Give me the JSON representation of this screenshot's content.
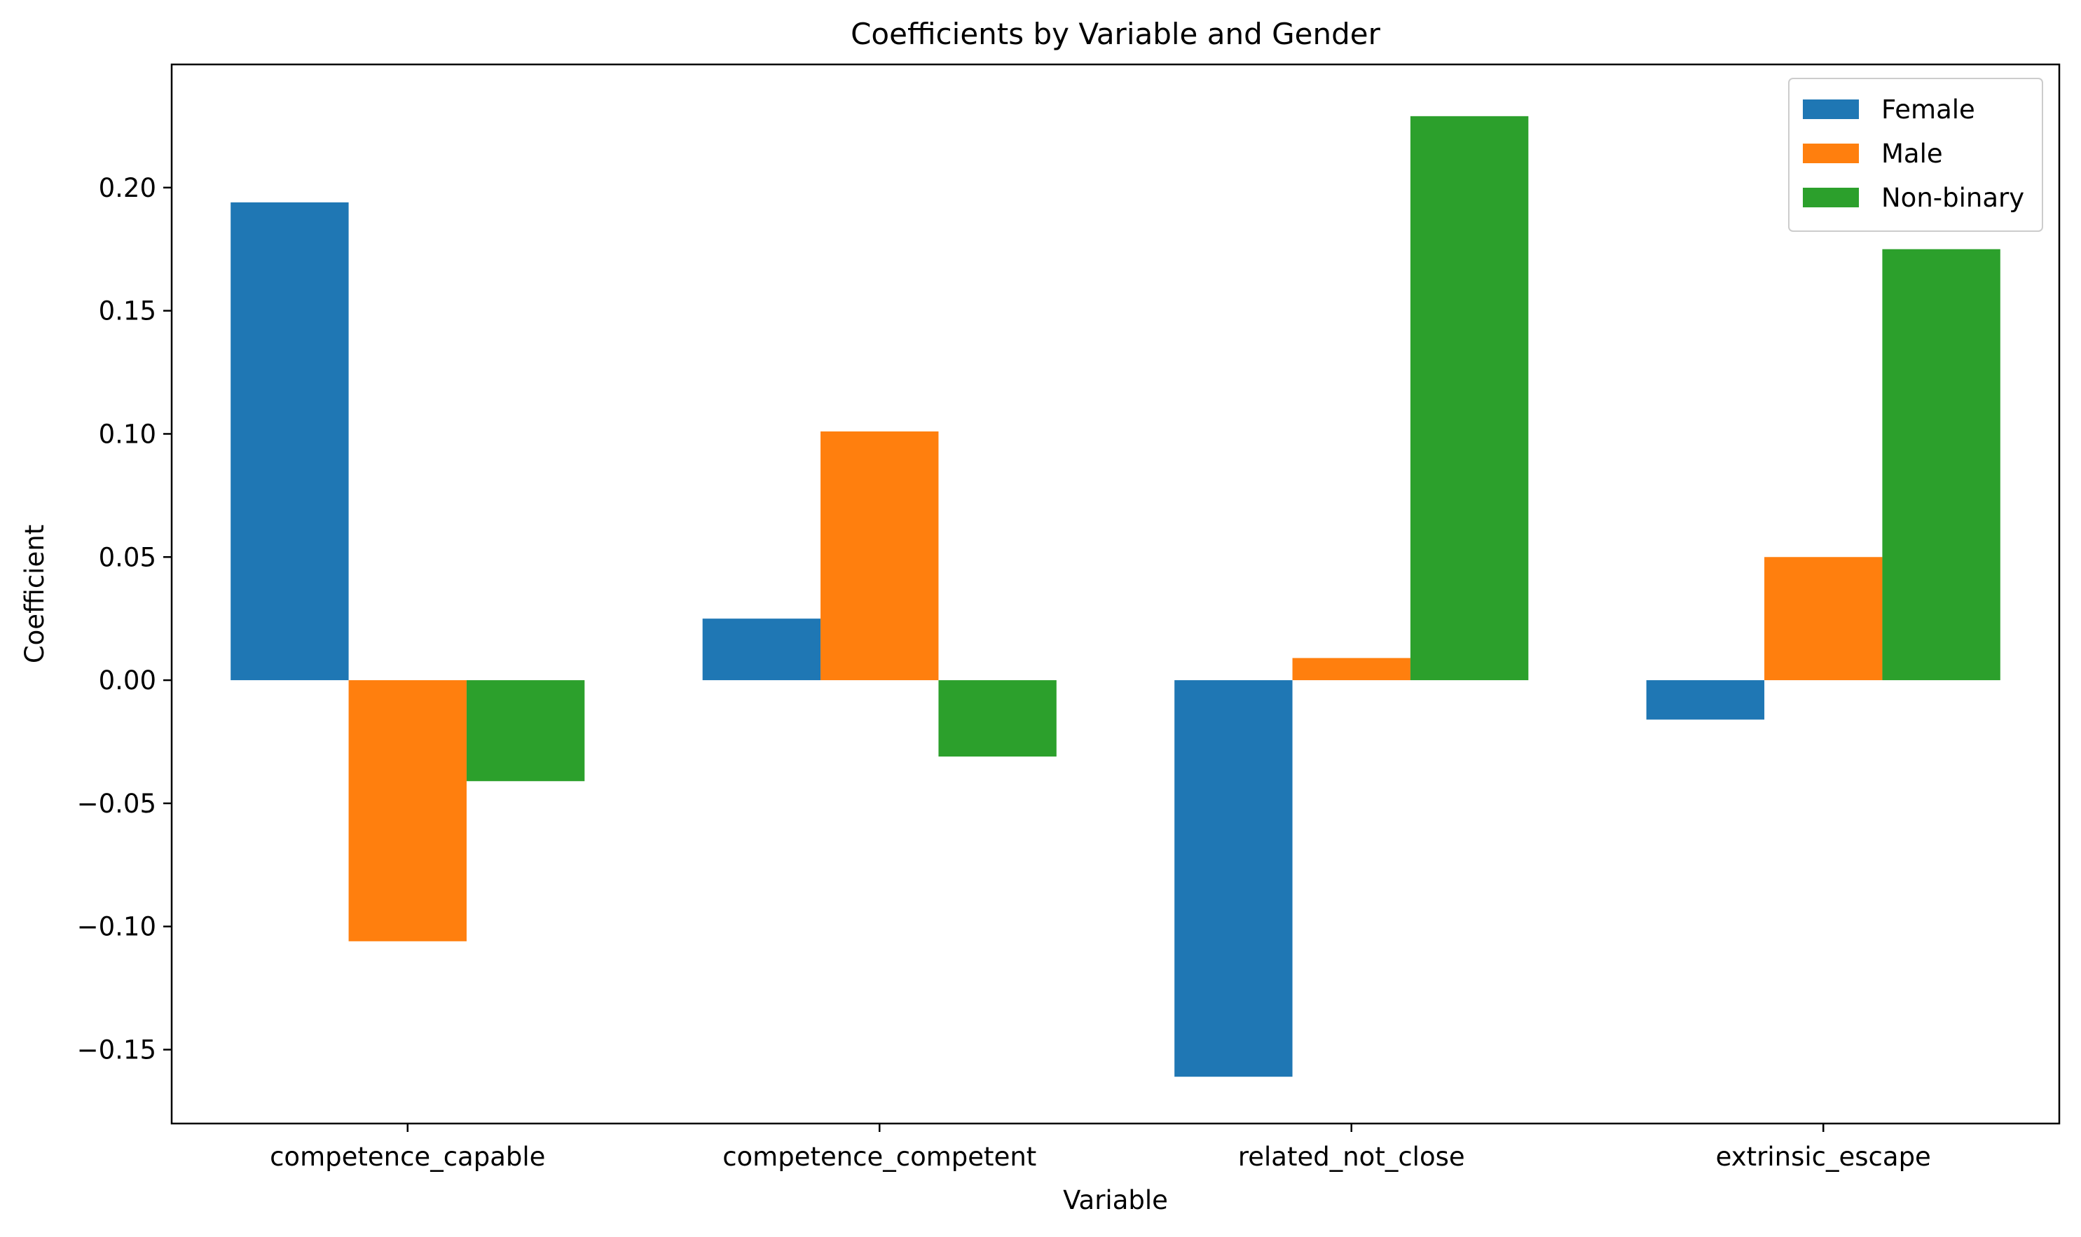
{
  "chart_data": {
    "type": "bar",
    "title": "Coefficients by Variable and Gender",
    "xlabel": "Variable",
    "ylabel": "Coefficient",
    "categories": [
      "competence_capable",
      "competence_competent",
      "related_not_close",
      "extrinsic_escape"
    ],
    "series": [
      {
        "name": "Female",
        "color": "#1f77b4",
        "values": [
          0.194,
          0.025,
          -0.161,
          -0.016
        ]
      },
      {
        "name": "Male",
        "color": "#ff7f0e",
        "values": [
          -0.106,
          0.101,
          0.009,
          0.05
        ]
      },
      {
        "name": "Non-binary",
        "color": "#2ca02c",
        "values": [
          -0.041,
          -0.031,
          0.229,
          0.175
        ]
      }
    ],
    "ylim": [
      -0.18,
      0.25
    ],
    "yticks": [
      -0.15,
      -0.1,
      -0.05,
      0.0,
      0.05,
      0.1,
      0.15,
      0.2
    ],
    "ytick_labels": [
      "−0.15",
      "−0.10",
      "−0.05",
      "0.00",
      "0.05",
      "0.10",
      "0.15",
      "0.20"
    ],
    "grid": false,
    "legend_position": "top-right"
  }
}
